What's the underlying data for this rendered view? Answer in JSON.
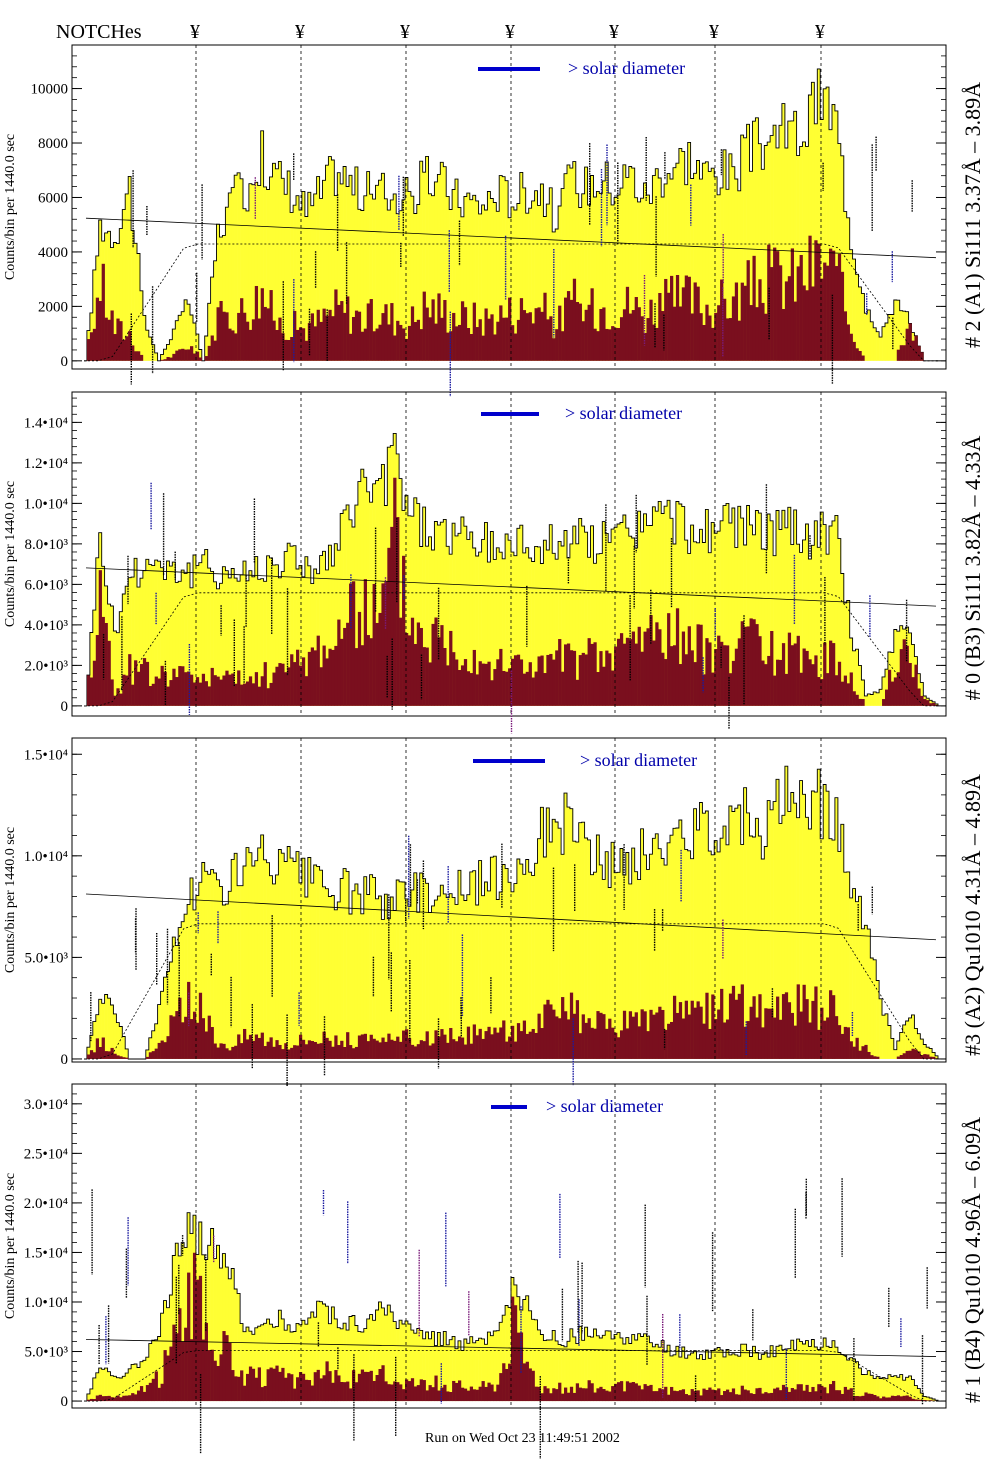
{
  "header": {
    "notches_label": "NOTCHes",
    "notch_marker": "¥",
    "notch_count": 7
  },
  "footer": {
    "run_text": "Run on Wed Oct 23 11:49:51 2002"
  },
  "colors": {
    "total_fill": "#ffff33",
    "background_fill": "#7a0f1e",
    "solar_bar": "#0000cc",
    "solar_text": "#0000aa",
    "annotation_blue": "#1a1aa0",
    "annotation_purple": "#7a1a7a",
    "outline": "#000000"
  },
  "chart_data": [
    {
      "type": "area",
      "title": "# 2 (A1) Si111  3.37Å – 3.89Å",
      "ylabel": "Counts/bin per   1440.0 sec",
      "solar_label": "> solar diameter",
      "ylim": [
        -300,
        11600
      ],
      "yticks": [
        0,
        2000,
        4000,
        6000,
        8000,
        10000
      ],
      "ytick_labels": [
        "0",
        "2000",
        "4000",
        "6000",
        "8000",
        "10000"
      ],
      "series": [
        {
          "values_total": [
            0,
            5000,
            4600,
            6400,
            1500,
            0,
            1100,
            2200,
            0,
            4700,
            5900,
            6400,
            7500,
            6700,
            6300,
            5500,
            6200,
            7000,
            6500,
            6100,
            6300,
            6100,
            5900,
            6600,
            6700,
            6000,
            5900,
            5700,
            6200,
            6000,
            6300,
            6300,
            5200,
            6700,
            6400,
            6700,
            6400,
            6900,
            6000,
            6900,
            7200,
            7500,
            6800,
            7000,
            6800,
            7700,
            8000,
            8400,
            8300,
            8600,
            9800,
            8700,
            4600,
            2000,
            1000,
            2200,
            1500,
            0,
            0
          ]
        },
        {
          "values_background": [
            0,
            2900,
            1200,
            1000,
            0,
            0,
            200,
            600,
            0,
            1500,
            1700,
            1900,
            2500,
            1400,
            1300,
            1200,
            1500,
            1900,
            1800,
            1500,
            1700,
            1600,
            1400,
            2000,
            1900,
            1700,
            1600,
            1500,
            1700,
            1800,
            1900,
            1900,
            1300,
            2200,
            1800,
            2000,
            2000,
            2100,
            1700,
            2100,
            2200,
            2300,
            2000,
            2100,
            2200,
            2600,
            2900,
            3100,
            3000,
            3300,
            3700,
            3100,
            1200,
            0,
            0,
            0,
            1500,
            0,
            0
          ]
        }
      ]
    },
    {
      "type": "area",
      "title": "# 0 (B3) Si111  3.82Å – 4.33Å",
      "ylabel": "Counts/bin per   1440.0 sec",
      "solar_label": "> solar diameter",
      "ylim": [
        -500,
        15500
      ],
      "yticks": [
        0,
        2000,
        4000,
        6000,
        8000,
        10000,
        12000,
        14000
      ],
      "ytick_labels": [
        "0",
        "2.0•10³",
        "4.0•10³",
        "6.0•10³",
        "8.0•10³",
        "1.0•10⁴",
        "1.2•10⁴",
        "1.4•10⁴"
      ],
      "series": [
        {
          "values_total": [
            0,
            8500,
            3500,
            6500,
            7000,
            7200,
            6800,
            6500,
            6900,
            6700,
            6600,
            6500,
            7000,
            7200,
            7400,
            7000,
            6800,
            7600,
            9600,
            11000,
            10200,
            12500,
            9800,
            8800,
            8600,
            8400,
            8200,
            8000,
            7800,
            8000,
            8200,
            7600,
            8400,
            8000,
            8300,
            8100,
            8200,
            8800,
            9000,
            9300,
            9200,
            8700,
            8600,
            8900,
            8800,
            9000,
            8800,
            8500,
            8700,
            8400,
            8500,
            8300,
            3800,
            500,
            800,
            3500,
            3600,
            500,
            0
          ]
        },
        {
          "values_background": [
            0,
            5800,
            600,
            1800,
            1700,
            1500,
            1700,
            1400,
            1500,
            1400,
            1300,
            1200,
            1500,
            1700,
            1900,
            2400,
            3000,
            3400,
            4200,
            5100,
            4200,
            8300,
            4300,
            3600,
            3500,
            3000,
            2800,
            2400,
            2000,
            2100,
            2200,
            1900,
            2500,
            2200,
            2400,
            2300,
            2600,
            3300,
            3500,
            3800,
            3600,
            3000,
            2800,
            3000,
            2900,
            3000,
            2900,
            2500,
            2600,
            2300,
            2400,
            2200,
            1400,
            0,
            0,
            2100,
            2600,
            300,
            0
          ]
        }
      ]
    },
    {
      "type": "area",
      "title": "#3 (A2) Qu1010  4.31Å – 4.89Å",
      "ylabel": "Counts/bin per   1440.0 sec",
      "solar_label": "> solar diameter",
      "ylim": [
        -150,
        15800
      ],
      "yticks": [
        0,
        5000,
        10000,
        15000
      ],
      "ytick_labels": [
        "0",
        "5.0•10³",
        "1.0•10⁴",
        "1.5•10⁴"
      ],
      "series": [
        {
          "values_total": [
            0,
            3000,
            2500,
            0,
            0,
            2500,
            5500,
            8000,
            9000,
            8300,
            9200,
            9400,
            9800,
            9400,
            9200,
            8800,
            8400,
            8300,
            8200,
            8000,
            8000,
            7900,
            8200,
            8400,
            8200,
            8300,
            8500,
            8600,
            9000,
            9400,
            10000,
            11000,
            11500,
            12000,
            10200,
            9600,
            9400,
            9800,
            10000,
            10200,
            11000,
            10800,
            11500,
            11700,
            12000,
            12200,
            11400,
            12400,
            12800,
            13000,
            12600,
            12200,
            8500,
            6500,
            3000,
            500,
            2200,
            800,
            0
          ]
        },
        {
          "values_background": [
            0,
            900,
            300,
            0,
            0,
            600,
            1800,
            2800,
            2200,
            900,
            700,
            1200,
            1100,
            900,
            800,
            1000,
            1100,
            1000,
            900,
            900,
            800,
            900,
            1100,
            1000,
            1000,
            1100,
            1200,
            1200,
            1400,
            1400,
            1700,
            2000,
            2100,
            2300,
            1800,
            1600,
            1600,
            1800,
            1900,
            2000,
            2200,
            2100,
            2300,
            2400,
            2500,
            2600,
            2200,
            2500,
            2600,
            2700,
            2500,
            2300,
            900,
            500,
            0,
            0,
            500,
            200,
            0
          ]
        }
      ]
    },
    {
      "type": "area",
      "title": "# 1 (B4) Qu1010 4.96Å – 6.09Å",
      "ylabel": "Counts/bin per   1440.0 sec",
      "solar_label": "> solar diameter",
      "ylim": [
        -700,
        32000
      ],
      "yticks": [
        0,
        5000,
        10000,
        15000,
        20000,
        25000,
        30000
      ],
      "ytick_labels": [
        "0",
        "5.0•10³",
        "1.0•10⁴",
        "1.5•10⁴",
        "2.0•10⁴",
        "2.5•10⁴",
        "3.0•10⁴"
      ],
      "series": [
        {
          "values_total": [
            0,
            3500,
            2500,
            3000,
            4500,
            7500,
            13000,
            19000,
            16000,
            15000,
            12000,
            7000,
            7500,
            8500,
            7500,
            8000,
            9500,
            8500,
            8000,
            7500,
            9000,
            8500,
            7000,
            6500,
            6500,
            6000,
            5800,
            5900,
            6500,
            11000,
            9500,
            6500,
            6200,
            6400,
            6800,
            6300,
            6500,
            6400,
            6000,
            5500,
            5000,
            4800,
            4600,
            5000,
            4800,
            5200,
            4800,
            5000,
            5500,
            5600,
            5800,
            5800,
            4200,
            2800,
            2500,
            2500,
            2400,
            500,
            0
          ]
        },
        {
          "values_background": [
            0,
            600,
            400,
            500,
            1200,
            2400,
            6000,
            12000,
            8500,
            6000,
            4000,
            2500,
            2400,
            2600,
            2000,
            2200,
            3000,
            2600,
            2300,
            2200,
            2600,
            2400,
            2000,
            1800,
            1800,
            1600,
            1500,
            1500,
            1800,
            8000,
            4000,
            1400,
            1300,
            1400,
            1600,
            1400,
            1500,
            1400,
            1300,
            1200,
            1100,
            1000,
            900,
            1100,
            1000,
            1200,
            1000,
            1100,
            1200,
            1300,
            1400,
            1400,
            900,
            600,
            500,
            500,
            400,
            100,
            0
          ]
        }
      ]
    }
  ]
}
